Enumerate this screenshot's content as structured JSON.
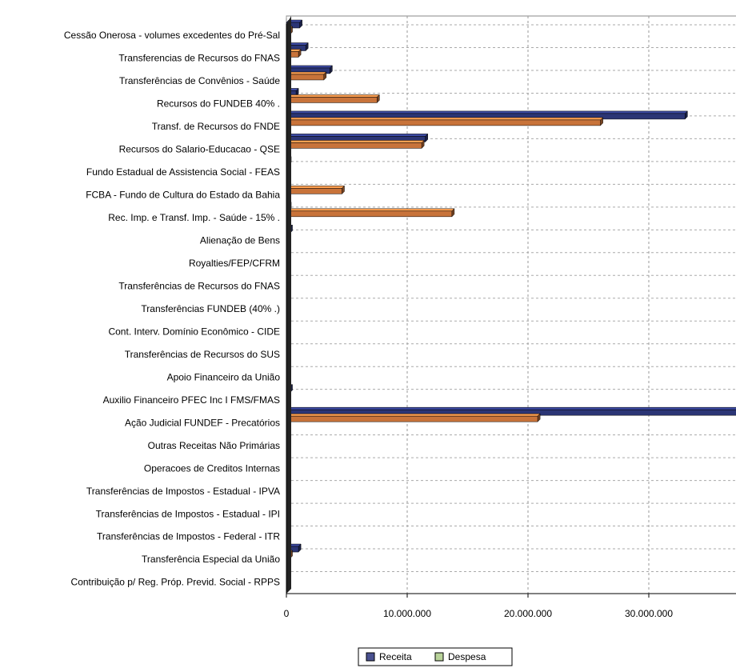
{
  "chart_data": {
    "type": "bar",
    "orientation": "horizontal",
    "categories": [
      "Cessão Onerosa - volumes excedentes do Pré-Sal",
      "Transferencias de Recursos do FNAS",
      "Transferências de Convênios - Saúde",
      "Recursos do FUNDEB 40% .",
      "Transf. de Recursos do FNDE",
      "Recursos do Salario-Educacao - QSE",
      "Fundo Estadual de Assistencia Social - FEAS",
      "FCBA - Fundo de Cultura do Estado da Bahia",
      "Rec. Imp. e Transf. Imp. - Saúde - 15% .",
      "Alienação de Bens",
      "Royalties/FEP/CFRM",
      "Transferências de Recursos do FNAS",
      "Transferências FUNDEB (40% .)",
      "Cont. Interv. Domínio Econômico - CIDE",
      "Transferências de Recursos do SUS",
      "Apoio Financeiro da União",
      "Auxilio Financeiro PFEC Inc I FMS/FMAS",
      "Ação Judicial FUNDEF - Precatórios",
      "Outras Receitas Não Primárias",
      "Operacoes de Creditos  Internas",
      "Transferências de Impostos - Estadual - IPVA",
      "Transferências de Impostos - Estadual - IPI",
      "Transferências de Impostos - Federal - ITR",
      "Transferência Especial da União",
      "Contribuição p/ Reg. Próp. Previd. Social - RPPS"
    ],
    "series": [
      {
        "name": "Receita",
        "color": "#2b3575",
        "legend_color": "#4a5190",
        "values": [
          1100000,
          1600000,
          3600000,
          800000,
          33000000,
          11500000,
          200000,
          100000,
          200000,
          300000,
          100000,
          0,
          0,
          0,
          0,
          0,
          300000,
          38000000,
          0,
          0,
          0,
          0,
          0,
          1000000,
          0
        ]
      },
      {
        "name": "Despesa",
        "color": "#c8733a",
        "legend_color": "#b9d39a",
        "values": [
          300000,
          1000000,
          3100000,
          7500000,
          26000000,
          11200000,
          100000,
          4600000,
          13700000,
          0,
          0,
          0,
          0,
          0,
          0,
          0,
          0,
          20800000,
          0,
          0,
          0,
          0,
          0,
          300000,
          0
        ]
      }
    ],
    "xlim": [
      0,
      40000000
    ],
    "xticks": [
      0,
      {
        "value": 10000000,
        "label": "10.000.000"
      },
      {
        "value": 20000000,
        "label": "20.000.000"
      },
      {
        "value": 30000000,
        "label": "30.000.000"
      }
    ],
    "grid": true,
    "legend": "bottom"
  }
}
